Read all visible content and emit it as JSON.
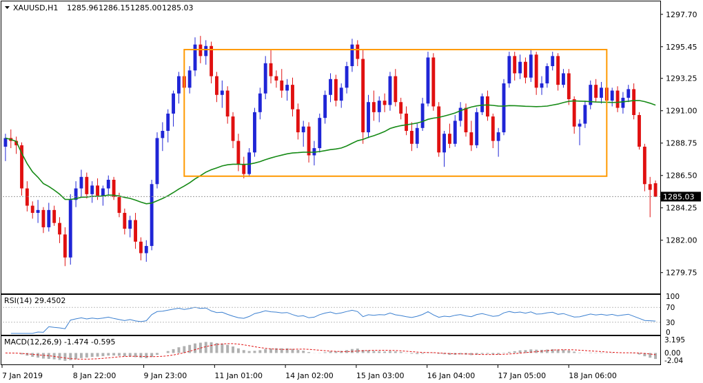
{
  "chart_data": {
    "type": "candlestick",
    "header": {
      "symbol_tf": "XAUUSD,H1",
      "open": "1285.96",
      "high": "1286.15",
      "low": "1285.00",
      "close": "1285.03"
    },
    "price_axis_ticks": [
      "1297.70",
      "1295.45",
      "1293.25",
      "1291.00",
      "1288.75",
      "1286.50",
      "1284.25",
      "1282.00",
      "1279.75"
    ],
    "last_price_label": "1285.03",
    "last_price": 1285.03,
    "ylim": [
      1278.3,
      1298.6
    ],
    "time_labels": [
      "7 Jan 2019",
      "8 Jan 22:00",
      "9 Jan 23:00",
      "11 Jan 01:00",
      "14 Jan 02:00",
      "15 Jan 03:00",
      "16 Jan 04:00",
      "17 Jan 05:00",
      "18 Jan 06:00"
    ],
    "range_box": {
      "upper": 1295.25,
      "lower": 1286.45,
      "color": "#ff9900"
    },
    "colors": {
      "bull": "#1f25d6",
      "bear": "#e01010",
      "ma": "#158a15",
      "rsi": "#3a7fd0",
      "macd_hist": "#b0b0b0",
      "macd_signal": "#e01010"
    },
    "candles": [
      [
        1288.5,
        1289.4,
        1287.5,
        1289.1
      ],
      [
        1289.1,
        1289.7,
        1288.4,
        1288.9
      ],
      [
        1288.9,
        1289.2,
        1288.0,
        1288.6
      ],
      [
        1288.6,
        1288.8,
        1285.1,
        1285.6
      ],
      [
        1285.6,
        1286.1,
        1284.0,
        1284.4
      ],
      [
        1284.4,
        1284.7,
        1283.5,
        1283.9
      ],
      [
        1283.9,
        1284.8,
        1283.2,
        1284.1
      ],
      [
        1284.1,
        1284.3,
        1282.5,
        1282.9
      ],
      [
        1282.9,
        1284.6,
        1282.6,
        1284.1
      ],
      [
        1284.1,
        1284.4,
        1283.0,
        1283.2
      ],
      [
        1283.2,
        1283.6,
        1281.8,
        1282.4
      ],
      [
        1282.4,
        1282.9,
        1280.2,
        1280.8
      ],
      [
        1280.8,
        1285.2,
        1280.3,
        1284.8
      ],
      [
        1284.8,
        1286.1,
        1284.3,
        1285.6
      ],
      [
        1285.6,
        1286.9,
        1285.0,
        1286.4
      ],
      [
        1286.4,
        1286.7,
        1284.9,
        1285.2
      ],
      [
        1285.2,
        1286.1,
        1284.6,
        1285.8
      ],
      [
        1285.8,
        1286.3,
        1284.8,
        1285.1
      ],
      [
        1285.1,
        1285.8,
        1284.4,
        1285.6
      ],
      [
        1285.6,
        1286.5,
        1285.1,
        1286.2
      ],
      [
        1286.2,
        1286.4,
        1284.8,
        1285.0
      ],
      [
        1285.0,
        1285.3,
        1283.6,
        1283.9
      ],
      [
        1283.9,
        1284.2,
        1282.4,
        1282.8
      ],
      [
        1282.8,
        1283.7,
        1282.2,
        1283.4
      ],
      [
        1283.4,
        1283.9,
        1281.4,
        1281.9
      ],
      [
        1281.9,
        1282.2,
        1280.6,
        1281.1
      ],
      [
        1281.1,
        1282.0,
        1280.5,
        1281.6
      ],
      [
        1281.6,
        1286.2,
        1281.3,
        1285.9
      ],
      [
        1285.9,
        1289.5,
        1285.6,
        1289.1
      ],
      [
        1289.1,
        1290.2,
        1288.2,
        1289.6
      ],
      [
        1289.6,
        1291.1,
        1288.8,
        1290.8
      ],
      [
        1290.8,
        1292.4,
        1289.9,
        1292.2
      ],
      [
        1292.2,
        1293.7,
        1291.5,
        1293.4
      ],
      [
        1293.4,
        1293.8,
        1292.1,
        1292.6
      ],
      [
        1292.6,
        1294.1,
        1292.2,
        1293.8
      ],
      [
        1293.8,
        1296.1,
        1293.4,
        1295.6
      ],
      [
        1295.6,
        1296.2,
        1294.3,
        1294.8
      ],
      [
        1294.8,
        1295.9,
        1294.2,
        1295.5
      ],
      [
        1295.5,
        1295.8,
        1292.9,
        1293.4
      ],
      [
        1293.4,
        1293.7,
        1291.6,
        1292.1
      ],
      [
        1292.1,
        1293.1,
        1291.2,
        1292.4
      ],
      [
        1292.4,
        1292.7,
        1290.1,
        1290.6
      ],
      [
        1290.6,
        1290.9,
        1288.4,
        1288.9
      ],
      [
        1288.9,
        1289.4,
        1286.8,
        1287.3
      ],
      [
        1287.3,
        1287.8,
        1286.3,
        1286.6
      ],
      [
        1286.6,
        1288.4,
        1286.4,
        1288.1
      ],
      [
        1288.1,
        1291.2,
        1287.8,
        1290.9
      ],
      [
        1290.9,
        1292.6,
        1290.4,
        1292.2
      ],
      [
        1292.2,
        1294.8,
        1291.8,
        1294.3
      ],
      [
        1294.3,
        1295.2,
        1292.9,
        1293.4
      ],
      [
        1293.4,
        1293.8,
        1292.6,
        1293.1
      ],
      [
        1293.1,
        1293.9,
        1291.9,
        1292.4
      ],
      [
        1292.4,
        1293.2,
        1291.7,
        1292.8
      ],
      [
        1292.8,
        1293.3,
        1290.6,
        1291.1
      ],
      [
        1291.1,
        1291.5,
        1289.0,
        1289.5
      ],
      [
        1289.5,
        1290.3,
        1288.5,
        1289.9
      ],
      [
        1289.9,
        1290.2,
        1287.4,
        1287.9
      ],
      [
        1287.9,
        1288.9,
        1287.2,
        1288.4
      ],
      [
        1288.4,
        1290.8,
        1288.1,
        1290.5
      ],
      [
        1290.5,
        1292.4,
        1290.1,
        1292.1
      ],
      [
        1292.1,
        1293.6,
        1291.6,
        1293.2
      ],
      [
        1293.2,
        1293.5,
        1291.3,
        1291.7
      ],
      [
        1291.7,
        1292.9,
        1291.2,
        1292.6
      ],
      [
        1292.6,
        1294.4,
        1292.2,
        1294.1
      ],
      [
        1294.1,
        1296.0,
        1293.7,
        1295.6
      ],
      [
        1295.6,
        1295.9,
        1294.1,
        1294.6
      ],
      [
        1294.6,
        1295.2,
        1288.7,
        1289.5
      ],
      [
        1289.5,
        1292.1,
        1289.1,
        1291.6
      ],
      [
        1291.6,
        1292.4,
        1290.3,
        1290.9
      ],
      [
        1290.9,
        1292.0,
        1290.2,
        1291.7
      ],
      [
        1291.7,
        1292.2,
        1290.9,
        1291.4
      ],
      [
        1291.4,
        1293.7,
        1291.0,
        1293.4
      ],
      [
        1293.4,
        1293.9,
        1291.3,
        1291.6
      ],
      [
        1291.6,
        1291.9,
        1290.4,
        1290.8
      ],
      [
        1290.8,
        1291.3,
        1289.3,
        1289.6
      ],
      [
        1289.6,
        1290.2,
        1288.2,
        1288.7
      ],
      [
        1288.7,
        1290.1,
        1288.4,
        1289.8
      ],
      [
        1289.8,
        1291.9,
        1289.6,
        1291.5
      ],
      [
        1291.5,
        1295.1,
        1291.3,
        1294.7
      ],
      [
        1294.7,
        1295.0,
        1291.0,
        1291.3
      ],
      [
        1291.3,
        1291.6,
        1287.8,
        1288.1
      ],
      [
        1288.1,
        1289.6,
        1287.1,
        1289.4
      ],
      [
        1289.4,
        1290.1,
        1288.4,
        1288.7
      ],
      [
        1288.7,
        1290.7,
        1288.5,
        1290.3
      ],
      [
        1290.3,
        1291.6,
        1289.9,
        1291.2
      ],
      [
        1291.2,
        1291.5,
        1289.2,
        1289.5
      ],
      [
        1289.5,
        1290.3,
        1288.2,
        1288.6
      ],
      [
        1288.6,
        1291.2,
        1288.4,
        1290.9
      ],
      [
        1290.9,
        1292.2,
        1290.7,
        1292.0
      ],
      [
        1292.0,
        1292.4,
        1290.3,
        1290.6
      ],
      [
        1290.6,
        1290.8,
        1288.4,
        1288.9
      ],
      [
        1288.9,
        1289.8,
        1287.8,
        1289.5
      ],
      [
        1289.5,
        1293.2,
        1289.3,
        1292.9
      ],
      [
        1292.9,
        1295.1,
        1292.6,
        1294.8
      ],
      [
        1294.8,
        1295.1,
        1293.1,
        1293.6
      ],
      [
        1293.6,
        1294.9,
        1293.2,
        1294.4
      ],
      [
        1294.4,
        1294.7,
        1292.9,
        1293.3
      ],
      [
        1293.3,
        1295.3,
        1293.0,
        1294.9
      ],
      [
        1294.9,
        1295.1,
        1292.1,
        1292.6
      ],
      [
        1292.6,
        1293.4,
        1292.1,
        1292.9
      ],
      [
        1292.9,
        1294.3,
        1292.6,
        1294.1
      ],
      [
        1294.1,
        1295.1,
        1293.8,
        1294.8
      ],
      [
        1294.8,
        1295.0,
        1292.4,
        1292.8
      ],
      [
        1292.8,
        1293.9,
        1292.6,
        1293.6
      ],
      [
        1293.6,
        1293.9,
        1291.4,
        1291.8
      ],
      [
        1291.8,
        1292.0,
        1289.4,
        1289.9
      ],
      [
        1289.9,
        1290.4,
        1288.6,
        1290.1
      ],
      [
        1290.1,
        1291.7,
        1289.8,
        1291.4
      ],
      [
        1291.4,
        1293.1,
        1291.1,
        1292.8
      ],
      [
        1292.8,
        1293.2,
        1291.6,
        1291.9
      ],
      [
        1291.9,
        1293.0,
        1291.5,
        1292.6
      ],
      [
        1292.6,
        1292.9,
        1291.3,
        1291.7
      ],
      [
        1291.7,
        1292.6,
        1291.3,
        1292.4
      ],
      [
        1292.4,
        1292.7,
        1290.9,
        1291.2
      ],
      [
        1291.2,
        1292.3,
        1290.8,
        1291.9
      ],
      [
        1291.9,
        1292.8,
        1291.6,
        1292.5
      ],
      [
        1292.5,
        1292.9,
        1290.4,
        1290.7
      ],
      [
        1290.7,
        1290.9,
        1288.3,
        1288.5
      ],
      [
        1288.5,
        1288.7,
        1285.4,
        1285.9
      ],
      [
        1285.9,
        1286.4,
        1283.6,
        1285.5
      ],
      [
        1285.96,
        1286.15,
        1285.0,
        1285.03
      ]
    ],
    "indicators": {
      "rsi": {
        "label": "RSI(14) 29.4502",
        "ticks": [
          "100",
          "70",
          "30",
          "0"
        ],
        "last": 29.45,
        "range": [
          0,
          100
        ]
      },
      "macd": {
        "label": "MACD(12,26,9) -1.474 -0.595",
        "ticks": [
          "3.195",
          "0.00",
          "-2.04"
        ],
        "main": -1.474,
        "signal": -0.595,
        "range": [
          -2.5,
          3.6
        ]
      }
    }
  }
}
